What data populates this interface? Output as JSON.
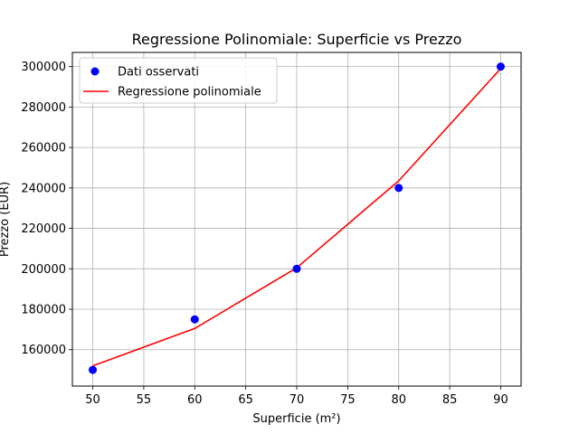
{
  "chart_data": {
    "type": "scatter",
    "title": "Regressione Polinomiale: Superficie vs Prezzo",
    "xlabel": "Superficie (m²)",
    "ylabel": "Prezzo (EUR)",
    "xlim": [
      48,
      92
    ],
    "ylim": [
      142000,
      307000
    ],
    "xticks": [
      50,
      55,
      60,
      65,
      70,
      75,
      80,
      85,
      90
    ],
    "yticks": [
      160000,
      180000,
      200000,
      220000,
      240000,
      260000,
      280000,
      300000
    ],
    "grid": true,
    "legend_position": "top-left",
    "series": [
      {
        "name": "Dati osservati",
        "kind": "scatter",
        "color": "#0000ff",
        "x": [
          50,
          60,
          70,
          80,
          90
        ],
        "y": [
          150000,
          175000,
          200000,
          240000,
          300000
        ]
      },
      {
        "name": "Regressione polinomiale",
        "kind": "line",
        "color": "#ff0000",
        "x": [
          50,
          60,
          70,
          80,
          90
        ],
        "y": [
          152000,
          170500,
          200500,
          243500,
          299000
        ]
      }
    ]
  }
}
